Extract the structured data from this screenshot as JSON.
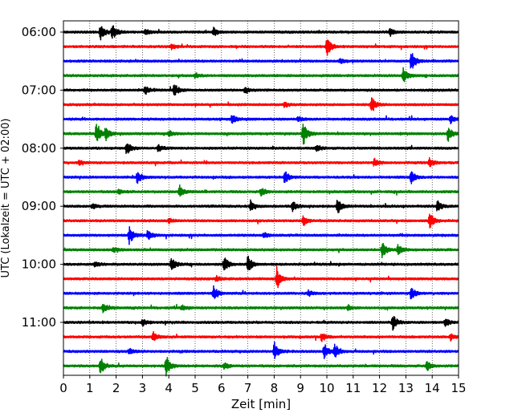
{
  "chart_data": {
    "type": "line",
    "xlabel": "Zeit  [min]",
    "ylabel": "UTC (Lokalzeit = UTC + 02:00)",
    "xlim": [
      0,
      15
    ],
    "x_ticks": [
      "0",
      "1",
      "2",
      "3",
      "4",
      "5",
      "6",
      "7",
      "8",
      "9",
      "10",
      "11",
      "12",
      "13",
      "14",
      "15"
    ],
    "y_ticks": [
      {
        "label": "06:00",
        "row": 0
      },
      {
        "label": "07:00",
        "row": 4
      },
      {
        "label": "08:00",
        "row": 8
      },
      {
        "label": "09:00",
        "row": 12
      },
      {
        "label": "10:00",
        "row": 16
      },
      {
        "label": "11:00",
        "row": 20
      }
    ],
    "grid_x": "dotted",
    "color_cycle": [
      "#000000",
      "#ff0000",
      "#0000ff",
      "#008000"
    ],
    "row_start": "06:00",
    "row_step_minutes": 15,
    "series": [
      {
        "row": 0,
        "events": [
          [
            1.4,
            1.0
          ],
          [
            1.85,
            0.9
          ],
          [
            3.1,
            0.4
          ],
          [
            5.7,
            0.5
          ],
          [
            12.4,
            0.5
          ]
        ]
      },
      {
        "row": 1,
        "events": [
          [
            10.0,
            1.3
          ],
          [
            4.1,
            0.3
          ]
        ]
      },
      {
        "row": 2,
        "events": [
          [
            13.2,
            1.3
          ],
          [
            10.5,
            0.3
          ]
        ]
      },
      {
        "row": 3,
        "events": [
          [
            12.9,
            1.0
          ],
          [
            5.0,
            0.3
          ]
        ]
      },
      {
        "row": 4,
        "events": [
          [
            3.1,
            0.5
          ],
          [
            4.2,
            0.8
          ],
          [
            6.9,
            0.4
          ]
        ]
      },
      {
        "row": 5,
        "events": [
          [
            11.7,
            1.0
          ],
          [
            8.4,
            0.3
          ]
        ]
      },
      {
        "row": 6,
        "events": [
          [
            6.4,
            0.6
          ],
          [
            14.7,
            0.5
          ],
          [
            8.9,
            0.3
          ]
        ]
      },
      {
        "row": 7,
        "events": [
          [
            1.25,
            1.4
          ],
          [
            1.6,
            0.8
          ],
          [
            9.1,
            1.5
          ],
          [
            4.0,
            0.4
          ],
          [
            14.6,
            0.9
          ]
        ]
      },
      {
        "row": 8,
        "events": [
          [
            2.4,
            0.8
          ],
          [
            3.6,
            0.4
          ],
          [
            9.6,
            0.4
          ]
        ]
      },
      {
        "row": 9,
        "events": [
          [
            11.8,
            0.5
          ],
          [
            13.9,
            0.5
          ],
          [
            0.6,
            0.3
          ]
        ]
      },
      {
        "row": 10,
        "events": [
          [
            2.8,
            0.8
          ],
          [
            8.4,
            0.8
          ],
          [
            13.2,
            0.9
          ]
        ]
      },
      {
        "row": 11,
        "events": [
          [
            4.4,
            0.8
          ],
          [
            7.5,
            0.5
          ],
          [
            2.1,
            0.3
          ]
        ]
      },
      {
        "row": 12,
        "events": [
          [
            7.1,
            0.7
          ],
          [
            8.7,
            0.6
          ],
          [
            10.4,
            1.0
          ],
          [
            14.2,
            0.7
          ],
          [
            1.1,
            0.3
          ]
        ]
      },
      {
        "row": 13,
        "events": [
          [
            9.1,
            0.6
          ],
          [
            13.9,
            1.1
          ],
          [
            4.0,
            0.3
          ]
        ]
      },
      {
        "row": 14,
        "events": [
          [
            2.5,
            1.1
          ],
          [
            3.2,
            0.6
          ],
          [
            7.6,
            0.3
          ]
        ]
      },
      {
        "row": 15,
        "events": [
          [
            12.1,
            0.9
          ],
          [
            12.7,
            0.7
          ],
          [
            1.9,
            0.3
          ]
        ]
      },
      {
        "row": 16,
        "events": [
          [
            4.1,
            0.9
          ],
          [
            6.1,
            1.0
          ],
          [
            7.0,
            1.1
          ],
          [
            1.2,
            0.3
          ]
        ]
      },
      {
        "row": 17,
        "events": [
          [
            8.1,
            1.3
          ],
          [
            5.8,
            0.3
          ]
        ]
      },
      {
        "row": 18,
        "events": [
          [
            5.7,
            1.0
          ],
          [
            13.2,
            0.8
          ],
          [
            9.3,
            0.3
          ]
        ]
      },
      {
        "row": 19,
        "events": [
          [
            1.5,
            0.6
          ],
          [
            4.5,
            0.3
          ],
          [
            10.8,
            0.3
          ]
        ]
      },
      {
        "row": 20,
        "events": [
          [
            12.5,
            1.0
          ],
          [
            14.5,
            0.5
          ],
          [
            3.0,
            0.4
          ]
        ]
      },
      {
        "row": 21,
        "events": [
          [
            3.4,
            0.6
          ],
          [
            9.8,
            0.5
          ],
          [
            14.7,
            0.4
          ]
        ]
      },
      {
        "row": 22,
        "events": [
          [
            8.0,
            1.2
          ],
          [
            9.9,
            1.0
          ],
          [
            10.3,
            0.9
          ],
          [
            2.5,
            0.4
          ]
        ]
      },
      {
        "row": 23,
        "events": [
          [
            1.4,
            1.1
          ],
          [
            3.9,
            1.2
          ],
          [
            13.8,
            0.6
          ],
          [
            6.1,
            0.4
          ]
        ]
      }
    ]
  }
}
